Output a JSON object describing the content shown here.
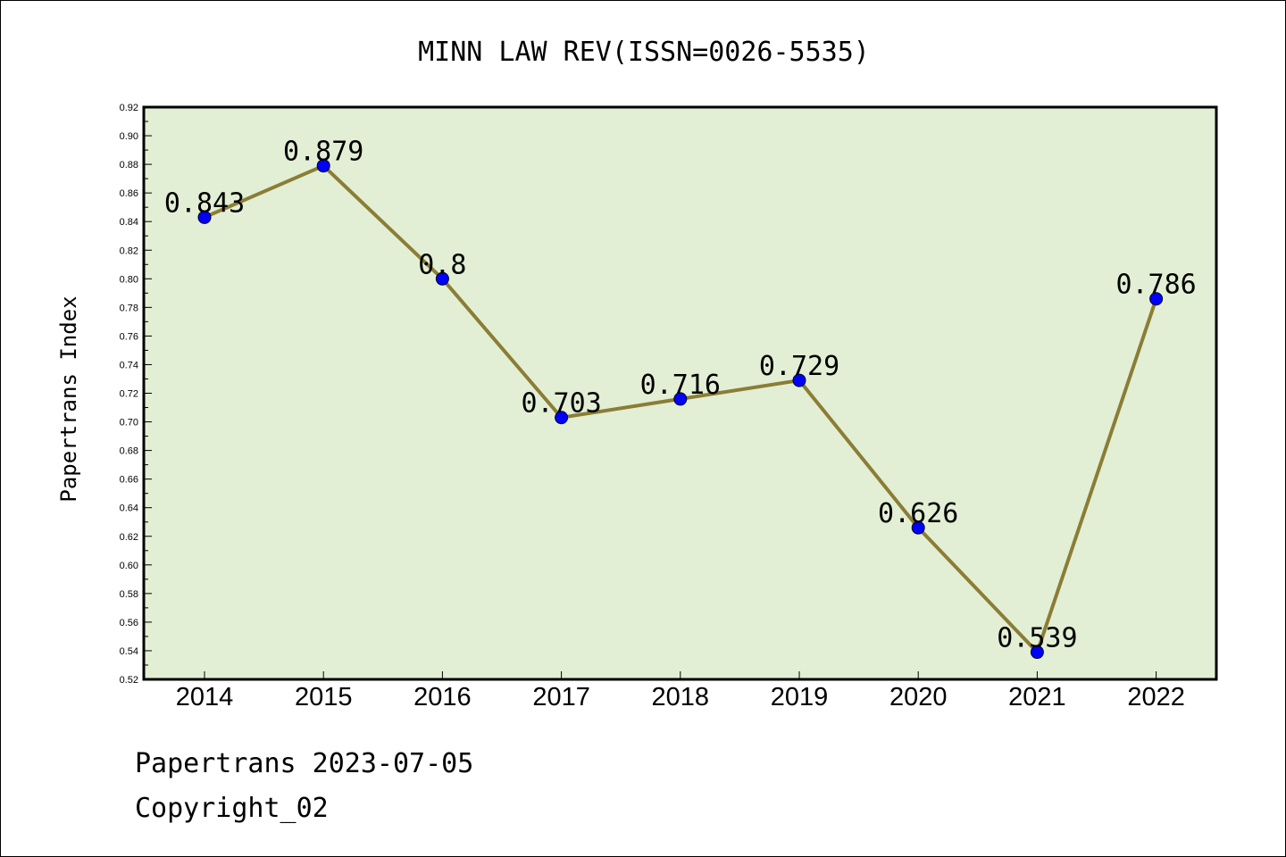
{
  "chart_data": {
    "type": "line",
    "title": "MINN LAW REV(ISSN=0026-5535)",
    "xlabel": "",
    "ylabel": "Papertrans Index",
    "categories": [
      "2014",
      "2015",
      "2016",
      "2017",
      "2018",
      "2019",
      "2020",
      "2021",
      "2022"
    ],
    "series": [
      {
        "values": [
          0.843,
          0.879,
          0.8,
          0.703,
          0.716,
          0.729,
          0.626,
          0.539,
          0.786
        ],
        "labels": [
          "0.843",
          "0.879",
          "0.8",
          "0.703",
          "0.716",
          "0.729",
          "0.626",
          "0.539",
          "0.786"
        ]
      }
    ],
    "ylim": [
      0.52,
      0.92
    ],
    "yticks": [
      "0.52",
      "0.54",
      "0.56",
      "0.58",
      "0.60",
      "0.62",
      "0.64",
      "0.66",
      "0.68",
      "0.70",
      "0.72",
      "0.74",
      "0.76",
      "0.78",
      "0.80",
      "0.82",
      "0.84",
      "0.86",
      "0.88",
      "0.90",
      "0.92"
    ],
    "grid": false,
    "colors": {
      "plot_background": "#e2efd5",
      "line": "#8b7d35",
      "marker": "#0000ff"
    }
  },
  "footer": {
    "line1": "Papertrans 2023-07-05",
    "line2": "Copyright_02"
  }
}
